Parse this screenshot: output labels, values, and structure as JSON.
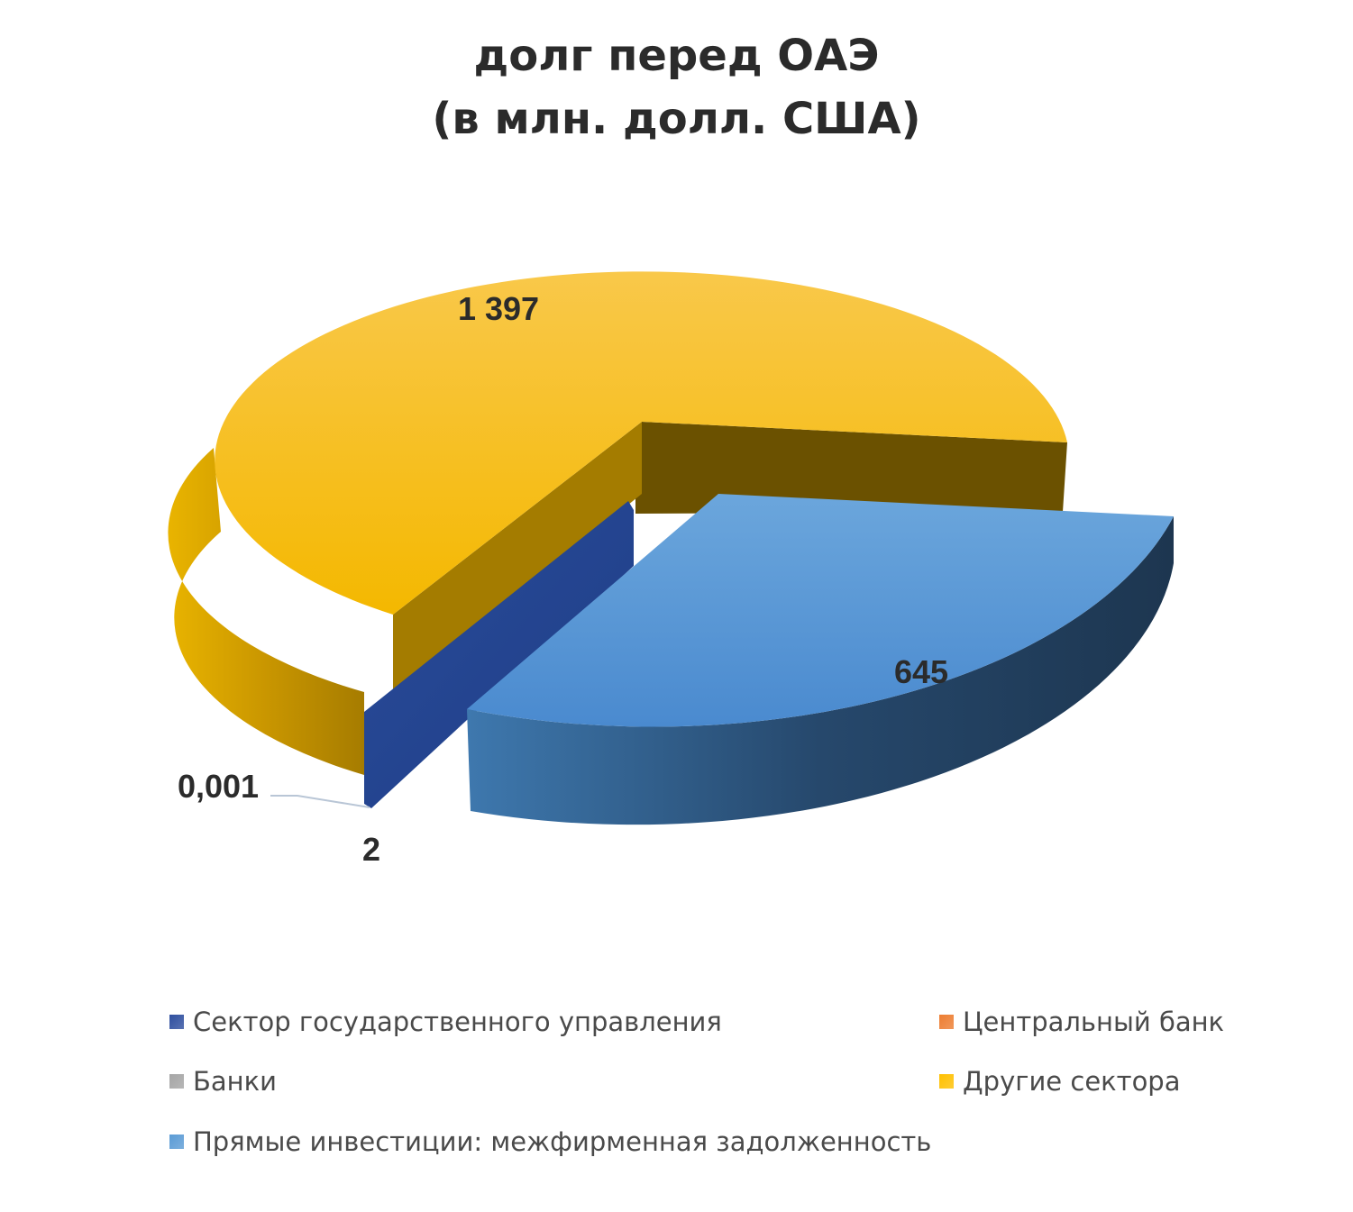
{
  "chart_data": {
    "type": "pie",
    "title_lines": [
      "долг перед ОАЭ",
      "(в млн. долл. США)"
    ],
    "series": [
      {
        "name": "Сектор государственного управления",
        "value": 2,
        "label": "2",
        "color": "#2F4F9F"
      },
      {
        "name": "Центральный банк",
        "value": 0,
        "label": "",
        "color": "#ED7D31"
      },
      {
        "name": "Банки",
        "value": 0.001,
        "label": "0,001",
        "color": "#A5A5A5"
      },
      {
        "name": "Другие сектора",
        "value": 1397,
        "label": "1 397",
        "color": "#FFC000"
      },
      {
        "name": "Прямые инвестиции: межфирменная задолженность",
        "value": 645,
        "label": "645",
        "color": "#5B9BD5"
      }
    ],
    "legend_position": "bottom",
    "style": "3d-exploded"
  }
}
